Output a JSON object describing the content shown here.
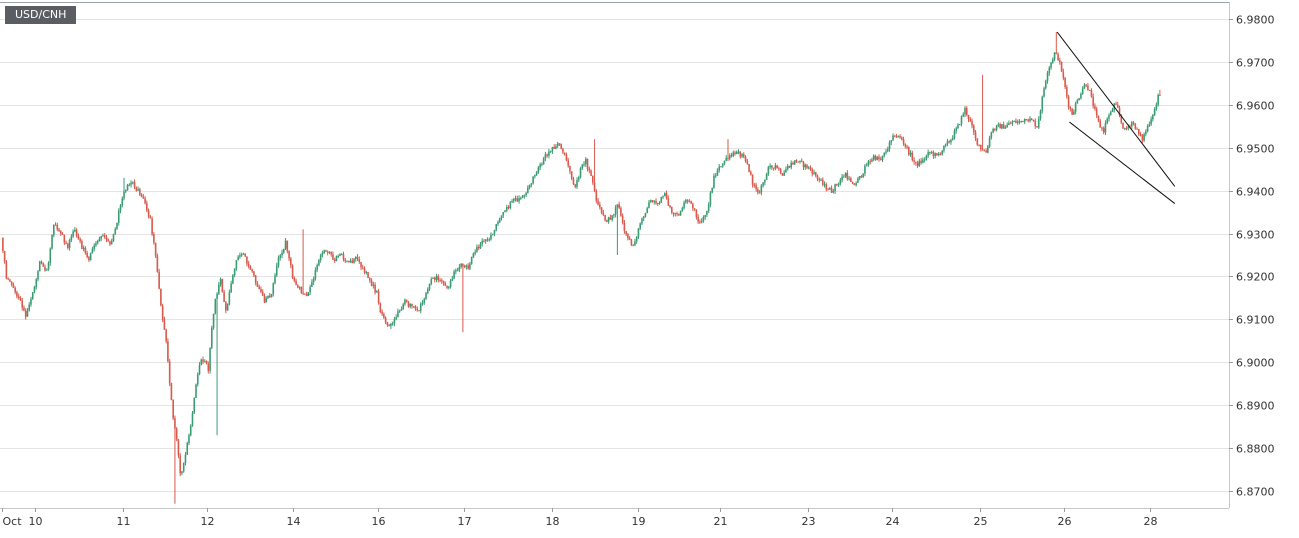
{
  "chart_data": {
    "type": "candlestick",
    "symbol": "USD/CNH",
    "ylim": [
      6.866,
      6.984
    ],
    "y_ticks": [
      "6.9800",
      "6.9700",
      "6.9600",
      "6.9500",
      "6.9400",
      "6.9300",
      "6.9200",
      "6.9100",
      "6.9000",
      "6.8900",
      "6.8800",
      "6.8700"
    ],
    "x_ticks": [
      {
        "label": "Oct",
        "t": 0
      },
      {
        "label": "10",
        "t": 19
      },
      {
        "label": "11",
        "t": 69
      },
      {
        "label": "12",
        "t": 117
      },
      {
        "label": "14",
        "t": 166
      },
      {
        "label": "16",
        "t": 214
      },
      {
        "label": "17",
        "t": 263
      },
      {
        "label": "18",
        "t": 313
      },
      {
        "label": "19",
        "t": 362
      },
      {
        "label": "21",
        "t": 409
      },
      {
        "label": "23",
        "t": 459
      },
      {
        "label": "24",
        "t": 507
      },
      {
        "label": "25",
        "t": 557
      },
      {
        "label": "26",
        "t": 605
      },
      {
        "label": "28",
        "t": 654
      }
    ],
    "colors": {
      "up": "#3a9b72",
      "down": "#d9594c",
      "grid": "#e4e4e4",
      "trendline": "#111111"
    },
    "keypoints": [
      [
        0,
        6.929
      ],
      [
        3,
        6.92
      ],
      [
        6,
        6.918
      ],
      [
        10,
        6.915
      ],
      [
        14,
        6.911
      ],
      [
        18,
        6.916
      ],
      [
        22,
        6.923
      ],
      [
        26,
        6.921
      ],
      [
        30,
        6.932
      ],
      [
        34,
        6.93
      ],
      [
        38,
        6.927
      ],
      [
        42,
        6.931
      ],
      [
        46,
        6.927
      ],
      [
        50,
        6.924
      ],
      [
        54,
        6.928
      ],
      [
        58,
        6.93
      ],
      [
        62,
        6.927
      ],
      [
        66,
        6.933
      ],
      [
        70,
        6.94
      ],
      [
        74,
        6.942
      ],
      [
        78,
        6.94
      ],
      [
        82,
        6.937
      ],
      [
        85,
        6.933
      ],
      [
        88,
        6.925
      ],
      [
        91,
        6.913
      ],
      [
        94,
        6.905
      ],
      [
        96,
        6.895
      ],
      [
        98,
        6.887
      ],
      [
        100,
        6.882
      ],
      [
        102,
        6.874
      ],
      [
        104,
        6.876
      ],
      [
        106,
        6.881
      ],
      [
        108,
        6.885
      ],
      [
        110,
        6.892
      ],
      [
        112,
        6.897
      ],
      [
        114,
        6.901
      ],
      [
        116,
        6.9
      ],
      [
        118,
        6.898
      ],
      [
        120,
        6.908
      ],
      [
        122,
        6.915
      ],
      [
        125,
        6.919
      ],
      [
        128,
        6.912
      ],
      [
        131,
        6.918
      ],
      [
        134,
        6.924
      ],
      [
        138,
        6.925
      ],
      [
        142,
        6.922
      ],
      [
        146,
        6.918
      ],
      [
        150,
        6.914
      ],
      [
        154,
        6.916
      ],
      [
        158,
        6.924
      ],
      [
        162,
        6.928
      ],
      [
        166,
        6.92
      ],
      [
        170,
        6.917
      ],
      [
        174,
        6.915
      ],
      [
        178,
        6.92
      ],
      [
        182,
        6.925
      ],
      [
        186,
        6.926
      ],
      [
        190,
        6.924
      ],
      [
        194,
        6.925
      ],
      [
        198,
        6.923
      ],
      [
        202,
        6.924
      ],
      [
        206,
        6.922
      ],
      [
        210,
        6.919
      ],
      [
        214,
        6.916
      ],
      [
        216,
        6.912
      ],
      [
        218,
        6.91
      ],
      [
        221,
        6.908
      ],
      [
        224,
        6.91
      ],
      [
        227,
        6.912
      ],
      [
        230,
        6.914
      ],
      [
        234,
        6.913
      ],
      [
        238,
        6.912
      ],
      [
        242,
        6.916
      ],
      [
        246,
        6.92
      ],
      [
        250,
        6.919
      ],
      [
        254,
        6.917
      ],
      [
        258,
        6.921
      ],
      [
        262,
        6.923
      ],
      [
        266,
        6.922
      ],
      [
        270,
        6.926
      ],
      [
        274,
        6.928
      ],
      [
        278,
        6.929
      ],
      [
        282,
        6.932
      ],
      [
        286,
        6.935
      ],
      [
        290,
        6.937
      ],
      [
        294,
        6.938
      ],
      [
        298,
        6.939
      ],
      [
        302,
        6.942
      ],
      [
        306,
        6.945
      ],
      [
        310,
        6.948
      ],
      [
        314,
        6.95
      ],
      [
        318,
        6.951
      ],
      [
        321,
        6.948
      ],
      [
        324,
        6.944
      ],
      [
        327,
        6.941
      ],
      [
        330,
        6.945
      ],
      [
        333,
        6.947
      ],
      [
        336,
        6.943
      ],
      [
        339,
        6.938
      ],
      [
        342,
        6.935
      ],
      [
        345,
        6.933
      ],
      [
        348,
        6.934
      ],
      [
        351,
        6.937
      ],
      [
        354,
        6.932
      ],
      [
        357,
        6.929
      ],
      [
        360,
        6.927
      ],
      [
        363,
        6.931
      ],
      [
        366,
        6.934
      ],
      [
        370,
        6.938
      ],
      [
        374,
        6.937
      ],
      [
        378,
        6.939
      ],
      [
        382,
        6.935
      ],
      [
        386,
        6.934
      ],
      [
        390,
        6.938
      ],
      [
        394,
        6.936
      ],
      [
        398,
        6.932
      ],
      [
        402,
        6.935
      ],
      [
        406,
        6.943
      ],
      [
        410,
        6.946
      ],
      [
        414,
        6.948
      ],
      [
        418,
        6.949
      ],
      [
        422,
        6.948
      ],
      [
        425,
        6.946
      ],
      [
        428,
        6.942
      ],
      [
        431,
        6.939
      ],
      [
        434,
        6.942
      ],
      [
        437,
        6.945
      ],
      [
        441,
        6.946
      ],
      [
        445,
        6.944
      ],
      [
        449,
        6.946
      ],
      [
        453,
        6.947
      ],
      [
        457,
        6.946
      ],
      [
        461,
        6.945
      ],
      [
        465,
        6.943
      ],
      [
        469,
        6.941
      ],
      [
        473,
        6.94
      ],
      [
        477,
        6.942
      ],
      [
        481,
        6.944
      ],
      [
        485,
        6.941
      ],
      [
        489,
        6.943
      ],
      [
        493,
        6.946
      ],
      [
        497,
        6.948
      ],
      [
        501,
        6.947
      ],
      [
        505,
        6.95
      ],
      [
        509,
        6.953
      ],
      [
        513,
        6.952
      ],
      [
        517,
        6.949
      ],
      [
        521,
        6.946
      ],
      [
        525,
        6.947
      ],
      [
        529,
        6.949
      ],
      [
        533,
        6.948
      ],
      [
        537,
        6.95
      ],
      [
        541,
        6.952
      ],
      [
        545,
        6.955
      ],
      [
        549,
        6.959
      ],
      [
        552,
        6.956
      ],
      [
        555,
        6.952
      ],
      [
        558,
        6.95
      ],
      [
        561,
        6.949
      ],
      [
        564,
        6.954
      ],
      [
        568,
        6.955
      ],
      [
        572,
        6.955
      ],
      [
        576,
        6.956
      ],
      [
        580,
        6.956
      ],
      [
        584,
        6.957
      ],
      [
        588,
        6.956
      ],
      [
        590,
        6.955
      ],
      [
        592,
        6.959
      ],
      [
        594,
        6.964
      ],
      [
        596,
        6.968
      ],
      [
        598,
        6.97
      ],
      [
        600,
        6.972
      ],
      [
        602,
        6.971
      ],
      [
        604,
        6.968
      ],
      [
        606,
        6.964
      ],
      [
        608,
        6.96
      ],
      [
        610,
        6.958
      ],
      [
        612,
        6.96
      ],
      [
        614,
        6.962
      ],
      [
        616,
        6.964
      ],
      [
        618,
        6.965
      ],
      [
        620,
        6.963
      ],
      [
        622,
        6.96
      ],
      [
        624,
        6.957
      ],
      [
        626,
        6.955
      ],
      [
        628,
        6.954
      ],
      [
        630,
        6.957
      ],
      [
        632,
        6.958
      ],
      [
        634,
        6.96
      ],
      [
        636,
        6.959
      ],
      [
        638,
        6.956
      ],
      [
        640,
        6.954
      ],
      [
        642,
        6.955
      ],
      [
        644,
        6.956
      ],
      [
        646,
        6.955
      ],
      [
        648,
        6.953
      ],
      [
        650,
        6.952
      ],
      [
        652,
        6.954
      ],
      [
        654,
        6.956
      ],
      [
        656,
        6.958
      ],
      [
        658,
        6.96
      ],
      [
        659,
        6.962
      ]
    ],
    "spikes": [
      {
        "t": 69,
        "v": 6.943
      },
      {
        "t": 98,
        "v": 6.867
      },
      {
        "t": 122,
        "v": 6.883
      },
      {
        "t": 171,
        "v": 6.931
      },
      {
        "t": 262,
        "v": 6.907
      },
      {
        "t": 337,
        "v": 6.952
      },
      {
        "t": 350,
        "v": 6.925
      },
      {
        "t": 413,
        "v": 6.952
      },
      {
        "t": 558,
        "v": 6.967
      },
      {
        "t": 600,
        "v": 6.977
      },
      {
        "t": 659,
        "v": 6.9635
      }
    ],
    "trendlines": [
      {
        "from": {
          "t": 601,
          "v": 6.977
        },
        "to": {
          "t": 668,
          "v": 6.941
        }
      },
      {
        "from": {
          "t": 608,
          "v": 6.956
        },
        "to": {
          "t": 668,
          "v": 6.937
        }
      }
    ]
  }
}
